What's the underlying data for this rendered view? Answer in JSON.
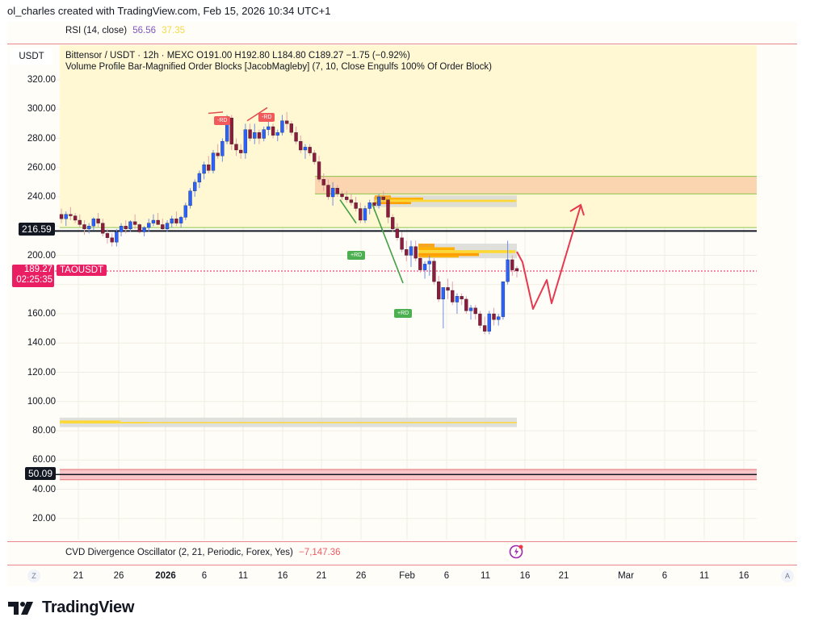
{
  "attribution": "ol_charles created with TradingView.com, Feb 15, 2026 10:34 UTC+1",
  "rsi": {
    "label": "RSI (14, close)",
    "value1": "56.56",
    "value2": "37.35"
  },
  "main": {
    "currency_tag": "USDT",
    "symbol_line": "Bittensor / USDT · 12h · MEXC  O191.00  H192.80  L184.80  C189.27  −1.75 (−0.92%)",
    "indicator_line": "Volume Profile Bar-Magnified Order Blocks [JacobMagleby] (7, 10, Close Engulfs 100% Of Order Block)",
    "price_tags": {
      "line_216": "216.59",
      "last_price": "189.27",
      "countdown": "02:25:35",
      "symbol_tag": "TAOUSDT",
      "line_50": "50.09"
    },
    "annotations": [
      {
        "label": "-RD",
        "color": "#f05a5a"
      },
      {
        "label": "-RD",
        "color": "#f05a5a"
      },
      {
        "label": "+RD",
        "color": "#4caf50"
      },
      {
        "label": "+RD",
        "color": "#4caf50"
      }
    ],
    "alert_icon": "lightning-alert-icon"
  },
  "cvd": {
    "label": "CVD Divergence Oscillator (2, 21, Periodic, Forex, Yes)",
    "value": "−7,147.36"
  },
  "time_axis": {
    "left_button": "Z",
    "right_button": "A",
    "ticks": [
      "21",
      "26",
      "2026",
      "6",
      "11",
      "16",
      "21",
      "26",
      "Feb",
      "6",
      "11",
      "16",
      "21",
      "Mar",
      "6",
      "11",
      "16"
    ]
  },
  "footer": {
    "logo_text": "TradingView"
  },
  "colors": {
    "bull": "#2962ff",
    "bear": "#8e1b3c",
    "accent_red": "#e91e63",
    "zone_yellow": "#fff8d2",
    "zone_orange": "#fbd4b0"
  },
  "chart_data": {
    "type": "candlestick",
    "title": "Bittensor / USDT · 12h · MEXC",
    "symbol": "TAOUSDT",
    "timeframe": "12h",
    "ohlc_last": {
      "open": 191.0,
      "high": 192.8,
      "low": 184.8,
      "close": 189.27,
      "change": -1.75,
      "change_pct": -0.92
    },
    "y_ticks": [
      20,
      40,
      60,
      80,
      100,
      120,
      140,
      160,
      180,
      200,
      220,
      240,
      260,
      280,
      300,
      320
    ],
    "y_tick_labels": [
      "20.00",
      "40.00",
      "60.00",
      "80.00",
      "100.00",
      "120.00",
      "140.00",
      "160.00",
      "200.00",
      "240.00",
      "260.00",
      "280.00",
      "300.00",
      "320.00"
    ],
    "x_tick_labels": [
      "21",
      "26",
      "2026",
      "6",
      "11",
      "16",
      "21",
      "26",
      "Feb",
      "6",
      "11",
      "16",
      "21",
      "Mar",
      "6",
      "11",
      "16"
    ],
    "ylim": [
      10,
      330
    ],
    "horizontal_levels": [
      {
        "price": 216.59,
        "label": "216.59",
        "color": "#000000"
      },
      {
        "price": 50.09,
        "label": "50.09",
        "color": "#000000",
        "band": [
          47,
          53
        ]
      },
      {
        "price": 189.27,
        "label": "last price",
        "style": "dotted",
        "color": "#e91e63"
      }
    ],
    "zones": [
      {
        "name": "supply-zone",
        "from": 242,
        "to": 254,
        "color": "#fbd4b0"
      },
      {
        "name": "range-zone",
        "from": 219,
        "to": 320,
        "color": "#fff8d2"
      },
      {
        "name": "order-block-1",
        "from": 233,
        "to": 241
      },
      {
        "name": "order-block-2",
        "from": 198,
        "to": 208
      },
      {
        "name": "order-block-3",
        "from": 83,
        "to": 89
      }
    ],
    "candles_approx": [
      [
        228,
        232,
        222,
        225
      ],
      [
        225,
        230,
        220,
        228
      ],
      [
        228,
        233,
        224,
        227
      ],
      [
        227,
        229,
        222,
        224
      ],
      [
        224,
        228,
        219,
        221
      ],
      [
        221,
        224,
        214,
        218
      ],
      [
        218,
        222,
        215,
        220
      ],
      [
        220,
        226,
        217,
        225
      ],
      [
        225,
        229,
        219,
        222
      ],
      [
        222,
        225,
        213,
        215
      ],
      [
        215,
        218,
        208,
        212
      ],
      [
        212,
        215,
        206,
        209
      ],
      [
        209,
        218,
        206,
        216
      ],
      [
        216,
        222,
        213,
        220
      ],
      [
        220,
        224,
        215,
        218
      ],
      [
        218,
        224,
        216,
        223
      ],
      [
        223,
        228,
        218,
        221
      ],
      [
        221,
        222,
        215,
        216
      ],
      [
        216,
        220,
        213,
        219
      ],
      [
        219,
        225,
        216,
        222
      ],
      [
        222,
        228,
        220,
        224
      ],
      [
        224,
        229,
        222,
        221
      ],
      [
        221,
        225,
        217,
        218
      ],
      [
        218,
        224,
        216,
        222
      ],
      [
        222,
        227,
        219,
        225
      ],
      [
        225,
        230,
        220,
        222
      ],
      [
        222,
        227,
        219,
        226
      ],
      [
        226,
        236,
        224,
        234
      ],
      [
        234,
        246,
        232,
        244
      ],
      [
        244,
        252,
        240,
        250
      ],
      [
        250,
        258,
        246,
        256
      ],
      [
        256,
        264,
        252,
        262
      ],
      [
        262,
        268,
        256,
        258
      ],
      [
        258,
        272,
        256,
        270
      ],
      [
        270,
        276,
        266,
        268
      ],
      [
        268,
        280,
        264,
        278
      ],
      [
        278,
        296,
        276,
        294
      ],
      [
        294,
        296,
        272,
        276
      ],
      [
        276,
        280,
        268,
        272
      ],
      [
        272,
        276,
        266,
        270
      ],
      [
        270,
        290,
        266,
        286
      ],
      [
        286,
        290,
        278,
        280
      ],
      [
        280,
        290,
        276,
        284
      ],
      [
        284,
        286,
        276,
        280
      ],
      [
        280,
        288,
        278,
        286
      ],
      [
        286,
        294,
        282,
        288
      ],
      [
        288,
        290,
        280,
        282
      ],
      [
        282,
        286,
        278,
        284
      ],
      [
        284,
        296,
        282,
        292
      ],
      [
        292,
        298,
        286,
        290
      ],
      [
        290,
        292,
        282,
        284
      ],
      [
        284,
        288,
        276,
        278
      ],
      [
        278,
        282,
        270,
        272
      ],
      [
        272,
        276,
        266,
        274
      ],
      [
        274,
        276,
        268,
        270
      ],
      [
        270,
        272,
        262,
        264
      ],
      [
        264,
        268,
        250,
        252
      ],
      [
        252,
        256,
        244,
        248
      ],
      [
        248,
        252,
        238,
        240
      ],
      [
        240,
        250,
        234,
        246
      ],
      [
        246,
        248,
        240,
        242
      ],
      [
        242,
        244,
        238,
        240
      ],
      [
        240,
        244,
        236,
        238
      ],
      [
        238,
        242,
        234,
        236
      ],
      [
        236,
        240,
        230,
        232
      ],
      [
        232,
        236,
        222,
        224
      ],
      [
        224,
        234,
        222,
        232
      ],
      [
        232,
        238,
        228,
        236
      ],
      [
        236,
        240,
        230,
        234
      ],
      [
        234,
        242,
        232,
        240
      ],
      [
        240,
        244,
        236,
        238
      ],
      [
        238,
        240,
        222,
        226
      ],
      [
        226,
        228,
        216,
        218
      ],
      [
        218,
        222,
        210,
        212
      ],
      [
        212,
        216,
        202,
        204
      ],
      [
        204,
        210,
        196,
        200
      ],
      [
        200,
        210,
        192,
        206
      ],
      [
        206,
        210,
        196,
        198
      ],
      [
        198,
        200,
        188,
        190
      ],
      [
        190,
        196,
        184,
        194
      ],
      [
        194,
        200,
        186,
        196
      ],
      [
        196,
        198,
        180,
        182
      ],
      [
        182,
        186,
        168,
        170
      ],
      [
        170,
        176,
        150,
        178
      ],
      [
        178,
        184,
        170,
        176
      ],
      [
        176,
        182,
        166,
        168
      ],
      [
        168,
        174,
        160,
        172
      ],
      [
        172,
        174,
        166,
        170
      ],
      [
        170,
        172,
        160,
        162
      ],
      [
        162,
        166,
        156,
        164
      ],
      [
        164,
        166,
        156,
        160
      ],
      [
        160,
        162,
        150,
        152
      ],
      [
        152,
        158,
        146,
        148
      ],
      [
        148,
        162,
        146,
        160
      ],
      [
        160,
        164,
        152,
        156
      ],
      [
        156,
        160,
        152,
        158
      ],
      [
        158,
        182,
        156,
        182
      ],
      [
        182,
        210,
        180,
        197
      ],
      [
        197,
        200,
        186,
        190
      ],
      [
        191,
        192.8,
        184.8,
        189.27
      ]
    ],
    "projection_path": [
      [
        640,
        312
      ],
      [
        647,
        325
      ],
      [
        660,
        383
      ],
      [
        677,
        347
      ],
      [
        683,
        376
      ],
      [
        719,
        255
      ]
    ]
  }
}
